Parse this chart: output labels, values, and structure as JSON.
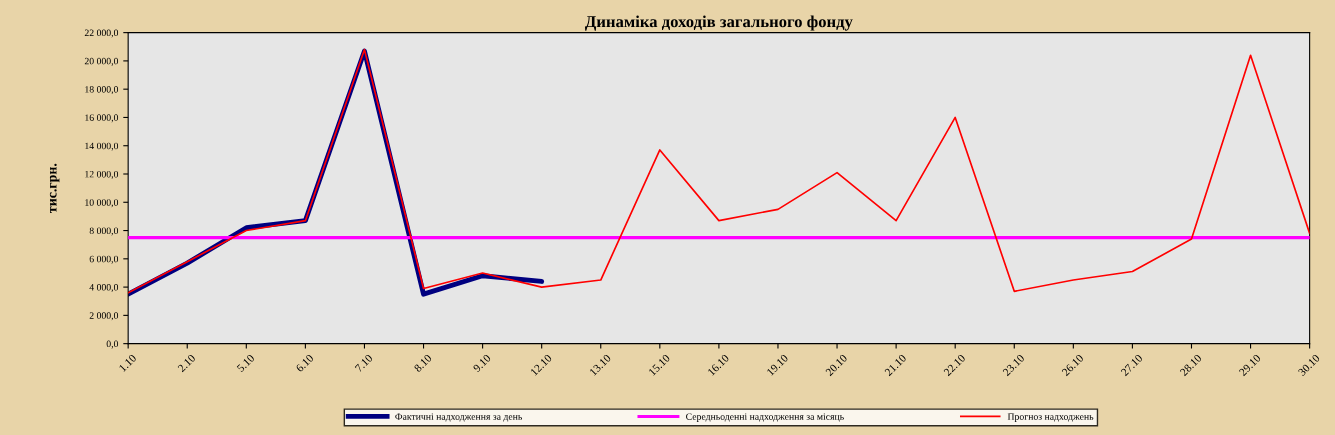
{
  "chart_data": {
    "type": "line",
    "title": "Динаміка доходів загального фонду",
    "ylabel": "тис.грн.",
    "categories": [
      "1.10",
      "2.10",
      "5.10",
      "6.10",
      "7.10",
      "8.10",
      "9.10",
      "12.10",
      "13.10",
      "15.10",
      "16.10",
      "19.10",
      "20.10",
      "21.10",
      "22.10",
      "23.10",
      "26.10",
      "27.10",
      "28.10",
      "29.10",
      "30.10"
    ],
    "series": [
      {
        "name": "Фактичні надходження за день",
        "color": "#000080",
        "values": [
          3500,
          5700,
          8200,
          8700,
          20700,
          3500,
          4800,
          4400,
          null,
          null,
          null,
          null,
          null,
          null,
          null,
          null,
          null,
          null,
          null,
          null,
          null
        ]
      },
      {
        "name": "Середньоденні надходження за місяць",
        "color": "#ff00ff",
        "values": [
          7500,
          7500,
          7500,
          7500,
          7500,
          7500,
          7500,
          7500,
          7500,
          7500,
          7500,
          7500,
          7500,
          7500,
          7500,
          7500,
          7500,
          7500,
          7500,
          7500,
          7500
        ]
      },
      {
        "name": "Прогноз надходжень",
        "color": "#ff0000",
        "values": [
          3600,
          5800,
          8000,
          8700,
          20800,
          3900,
          5000,
          4000,
          4500,
          13700,
          8700,
          9500,
          12100,
          8700,
          16000,
          3700,
          4500,
          5100,
          7400,
          20400,
          7800
        ]
      }
    ],
    "ylim": [
      0,
      22000
    ],
    "yticks": [
      {
        "value": 0,
        "label": "0,0"
      },
      {
        "value": 2000,
        "label": "2 000,0"
      },
      {
        "value": 4000,
        "label": "4 000,0"
      },
      {
        "value": 6000,
        "label": "6 000,0"
      },
      {
        "value": 8000,
        "label": "8 000,0"
      },
      {
        "value": 10000,
        "label": "10 000,0"
      },
      {
        "value": 12000,
        "label": "12 000,0"
      },
      {
        "value": 14000,
        "label": "14 000,0"
      },
      {
        "value": 16000,
        "label": "16 000,0"
      },
      {
        "value": 18000,
        "label": "18 000,0"
      },
      {
        "value": 20000,
        "label": "20 000,0"
      },
      {
        "value": 22000,
        "label": "22 000,0"
      }
    ],
    "grid": false,
    "legend": "bottom",
    "marker": "none",
    "line_style": "solid"
  }
}
